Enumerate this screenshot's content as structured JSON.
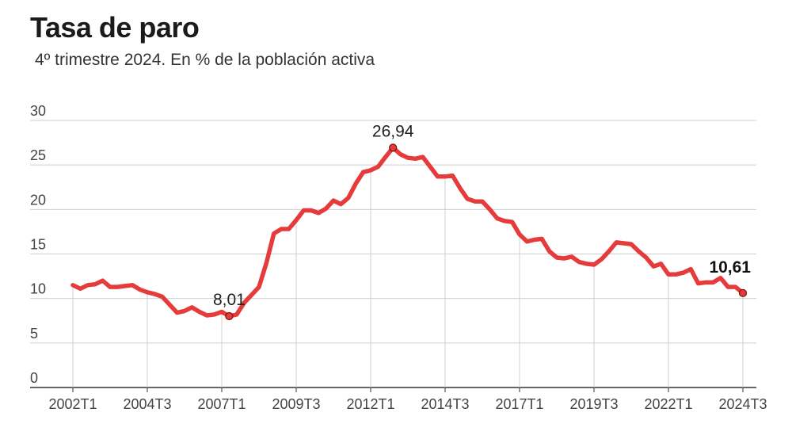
{
  "header": {
    "title": "Tasa de paro",
    "subtitle": "4º trimestre 2024. En % de la población activa"
  },
  "chart_data": {
    "type": "line",
    "title": "Tasa de paro",
    "subtitle": "4º trimestre 2024. En % de la población activa",
    "xlabel": "",
    "ylabel": "",
    "ylim": [
      0,
      30
    ],
    "yticks": [
      0,
      5,
      10,
      15,
      20,
      25,
      30
    ],
    "grid": true,
    "line_color": "#e63b3b",
    "start_quarter": "2002T1",
    "xtick_labels": [
      "2002T1",
      "2004T3",
      "2007T1",
      "2009T3",
      "2012T1",
      "2014T3",
      "2017T1",
      "2019T3",
      "2022T1",
      "2024T3"
    ],
    "series": [
      {
        "name": "Tasa de paro",
        "values": [
          11.5,
          11.1,
          11.5,
          11.6,
          12.0,
          11.3,
          11.3,
          11.4,
          11.5,
          11.0,
          10.7,
          10.5,
          10.2,
          9.3,
          8.4,
          8.6,
          9.0,
          8.5,
          8.1,
          8.2,
          8.5,
          8.01,
          8.2,
          9.5,
          10.4,
          11.3,
          14.0,
          17.3,
          17.8,
          17.8,
          18.8,
          19.9,
          19.9,
          19.6,
          20.1,
          21.0,
          20.6,
          21.3,
          22.9,
          24.2,
          24.4,
          24.8,
          25.9,
          26.94,
          26.2,
          25.8,
          25.7,
          25.9,
          24.8,
          23.7,
          23.7,
          23.8,
          22.4,
          21.2,
          20.9,
          20.9,
          20.0,
          19.0,
          18.7,
          18.6,
          17.2,
          16.4,
          16.6,
          16.7,
          15.3,
          14.6,
          14.5,
          14.7,
          14.1,
          13.9,
          13.8,
          14.4,
          15.3,
          16.3,
          16.2,
          16.1,
          15.3,
          14.6,
          13.6,
          13.9,
          12.7,
          12.7,
          12.9,
          13.3,
          11.7,
          11.8,
          11.8,
          12.3,
          11.3,
          11.3,
          10.61
        ]
      }
    ],
    "annotations": [
      {
        "index": 21,
        "label": "8,01",
        "bold": false,
        "position": "above"
      },
      {
        "index": 43,
        "label": "26,94",
        "bold": false,
        "position": "above"
      },
      {
        "index": 90,
        "label": "10,61",
        "bold": true,
        "position": "above-left"
      }
    ]
  }
}
